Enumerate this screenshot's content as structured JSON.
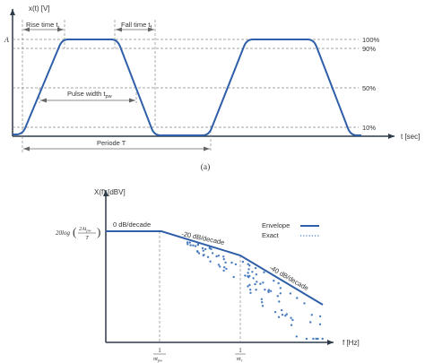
{
  "colors": {
    "signal": "#2f5fa8",
    "axis": "#2c3a4a",
    "guide": "#888888",
    "exact": "#4a7cc0"
  },
  "diagram_a": {
    "y_axis_label": "x(t) [V]",
    "x_axis_label": "t [sec]",
    "amplitude_label": "A",
    "rise_time_label": "Rise time t",
    "rise_time_sub": "r",
    "fall_time_label": "Fall time t",
    "fall_time_sub": "f",
    "pulse_width_label": "Pulse width t",
    "pulse_width_sub": "pw",
    "period_label": "Periode T",
    "levels": [
      "100%",
      "90%",
      "50%",
      "10%"
    ],
    "caption": "(a)"
  },
  "diagram_b": {
    "y_axis_label": "X(f) [dBV]",
    "x_axis_label": "f [Hz]",
    "amplitude_expr_prefix": "20log",
    "amplitude_expr_num": "2At",
    "amplitude_expr_num_sub": "pw",
    "amplitude_expr_den": "T",
    "slope_0": "0 dB/decade",
    "slope_20": "-20 dB/decade",
    "slope_40": "-40 dB/decade",
    "legend_envelope": "Envelope",
    "legend_exact": "Exact",
    "tick1_num": "1",
    "tick1_den": "πt",
    "tick1_den_sub": "pw",
    "tick2_num": "1",
    "tick2_den": "πt",
    "tick2_den_sub": "r"
  }
}
